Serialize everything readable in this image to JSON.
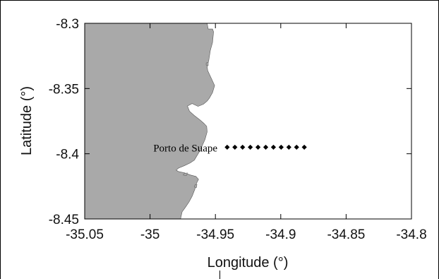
{
  "chart_data": {
    "type": "scatter",
    "xlabel": "Longitude (°)",
    "ylabel": "Latitude (°)",
    "xlim": [
      -35.05,
      -34.8
    ],
    "ylim": [
      -8.45,
      -8.3
    ],
    "x_ticks": [
      -35.05,
      -35.0,
      -34.95,
      -34.9,
      -34.85,
      -34.8
    ],
    "x_tick_labels": [
      "-35.05",
      "-35",
      "-34.95",
      "-34.9",
      "-34.85",
      "-34.8"
    ],
    "y_ticks": [
      -8.3,
      -8.35,
      -8.4,
      -8.45
    ],
    "y_tick_labels": [
      "-8.3",
      "-8.35",
      "-8.4",
      "-8.45"
    ],
    "grid": false,
    "land_color": "#a9a9a9",
    "marker_color": "#000000",
    "annotations": [
      {
        "text": "Porto de Suape",
        "lon": -34.973,
        "lat": -8.3955
      }
    ],
    "points": [
      {
        "lon": -34.941,
        "lat": -8.395
      },
      {
        "lon": -34.9351,
        "lat": -8.395
      },
      {
        "lon": -34.9292,
        "lat": -8.395
      },
      {
        "lon": -34.9233,
        "lat": -8.395
      },
      {
        "lon": -34.9174,
        "lat": -8.395
      },
      {
        "lon": -34.9115,
        "lat": -8.395
      },
      {
        "lon": -34.9056,
        "lat": -8.395
      },
      {
        "lon": -34.8997,
        "lat": -8.395
      },
      {
        "lon": -34.8938,
        "lat": -8.395
      },
      {
        "lon": -34.8879,
        "lat": -8.395
      },
      {
        "lon": -34.882,
        "lat": -8.395
      }
    ],
    "coastline_lonlat": [
      [
        -35.05,
        -8.3
      ],
      [
        -34.9563,
        -8.3
      ],
      [
        -34.9555,
        -8.3044
      ],
      [
        -34.9522,
        -8.3044
      ],
      [
        -34.9514,
        -8.3065
      ],
      [
        -34.9522,
        -8.3148
      ],
      [
        -34.9539,
        -8.3208
      ],
      [
        -34.9551,
        -8.3284
      ],
      [
        -34.9563,
        -8.333
      ],
      [
        -34.9559,
        -8.3363
      ],
      [
        -34.9531,
        -8.3423
      ],
      [
        -34.9506,
        -8.3477
      ],
      [
        -34.9522,
        -8.3531
      ],
      [
        -34.9547,
        -8.3575
      ],
      [
        -34.9563,
        -8.3596
      ],
      [
        -34.9592,
        -8.362
      ],
      [
        -34.9633,
        -8.3637
      ],
      [
        -34.9678,
        -8.3615
      ],
      [
        -34.9714,
        -8.3634
      ],
      [
        -34.9698,
        -8.3674
      ],
      [
        -34.9661,
        -8.3707
      ],
      [
        -34.962,
        -8.3739
      ],
      [
        -34.9588,
        -8.3767
      ],
      [
        -34.9567,
        -8.3789
      ],
      [
        -34.9563,
        -8.3832
      ],
      [
        -34.958,
        -8.3892
      ],
      [
        -34.96,
        -8.3935
      ],
      [
        -34.962,
        -8.3979
      ],
      [
        -34.9645,
        -8.4022
      ],
      [
        -34.9661,
        -8.4049
      ],
      [
        -34.9694,
        -8.4071
      ],
      [
        -34.9739,
        -8.4092
      ],
      [
        -34.978,
        -8.4109
      ],
      [
        -34.98,
        -8.4125
      ],
      [
        -34.9784,
        -8.4136
      ],
      [
        -34.9735,
        -8.4147
      ],
      [
        -34.969,
        -8.4163
      ],
      [
        -34.9649,
        -8.4174
      ],
      [
        -34.9629,
        -8.4196
      ],
      [
        -34.9645,
        -8.4228
      ],
      [
        -34.9657,
        -8.4272
      ],
      [
        -34.9678,
        -8.4326
      ],
      [
        -34.9702,
        -8.437
      ],
      [
        -34.9731,
        -8.4413
      ],
      [
        -34.9755,
        -8.4446
      ],
      [
        -34.9767,
        -8.45
      ],
      [
        -35.05,
        -8.45
      ]
    ],
    "islands_lonlat": [
      [
        [
          -34.9571,
          -8.3304
        ],
        [
          -34.9555,
          -8.3299
        ],
        [
          -34.9555,
          -8.3326
        ],
        [
          -34.9571,
          -8.3321
        ]
      ],
      [
        [
          -34.9657,
          -8.4239
        ],
        [
          -34.9641,
          -8.4234
        ],
        [
          -34.9645,
          -8.4261
        ],
        [
          -34.9661,
          -8.4255
        ]
      ],
      [
        [
          -34.9739,
          -8.4152
        ],
        [
          -34.9714,
          -8.4147
        ],
        [
          -34.9722,
          -8.4168
        ],
        [
          -34.9747,
          -8.4163
        ]
      ]
    ]
  }
}
